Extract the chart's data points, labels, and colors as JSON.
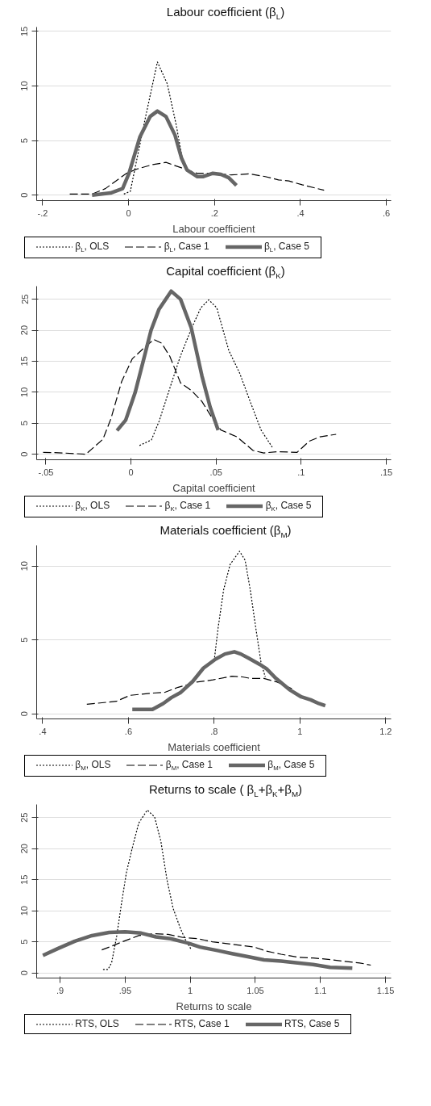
{
  "chart_data": [
    {
      "type": "line",
      "title": "Labour coefficient (β$_{L}$)",
      "xlabel": "Labour coefficient",
      "xlim": [
        -0.214,
        0.611
      ],
      "ylim": [
        -0.5,
        15.4
      ],
      "xticks": [
        {
          "value": -0.2,
          "label": "-.2"
        },
        0,
        {
          "value": 0.2,
          "label": ".2"
        },
        {
          "value": 0.4,
          "label": ".4"
        },
        {
          "value": 0.6,
          "label": ".6"
        }
      ],
      "yticks": [
        0,
        5,
        10,
        15
      ],
      "grid": "y",
      "legend": "bottom",
      "series": [
        {
          "name": "β$_{L}$, OLS",
          "color": "#000000",
          "line_style": "dotted",
          "x": [
            -0.011,
            0.004,
            0.038,
            0.067,
            0.09,
            0.111,
            0.126,
            0.135
          ],
          "values": [
            0.1,
            0.35,
            6.9,
            12.2,
            10.2,
            6.4,
            3.1,
            2.3
          ]
        },
        {
          "name": "β$_{L}$, Case 1",
          "color": "#000000",
          "line_style": "dashed",
          "x": [
            -0.137,
            -0.085,
            -0.054,
            -0.005,
            0.02,
            0.056,
            0.087,
            0.123,
            0.16,
            0.196,
            0.239,
            0.282,
            0.318,
            0.349,
            0.373,
            0.404,
            0.455
          ],
          "values": [
            0.1,
            0.1,
            0.6,
            2.0,
            2.4,
            2.8,
            3.0,
            2.5,
            2.0,
            2.0,
            1.85,
            1.95,
            1.7,
            1.4,
            1.3,
            0.95,
            0.45
          ]
        },
        {
          "name": "β$_{L}$, Case 5",
          "color": "#666666",
          "line_style": "solid",
          "x": [
            -0.085,
            -0.042,
            -0.014,
            0.001,
            0.026,
            0.05,
            0.067,
            0.087,
            0.108,
            0.123,
            0.136,
            0.16,
            0.173,
            0.196,
            0.215,
            0.233,
            0.251
          ],
          "values": [
            0,
            0.2,
            0.6,
            2.0,
            5.3,
            7.2,
            7.7,
            7.2,
            5.5,
            3.4,
            2.3,
            1.7,
            1.7,
            2.0,
            1.9,
            1.6,
            0.9
          ]
        }
      ]
    },
    {
      "type": "line",
      "title": "Capital coefficient (β$_{K}$)",
      "xlabel": "Capital coefficient",
      "xlim": [
        -0.0554,
        0.1528
      ],
      "ylim": [
        -0.9,
        27.1
      ],
      "xticks": [
        {
          "value": -0.05,
          "label": "-.05"
        },
        0,
        {
          "value": 0.05,
          "label": ".05"
        },
        {
          "value": 0.1,
          "label": ".1"
        },
        {
          "value": 0.15,
          "label": ".15"
        }
      ],
      "yticks": [
        0,
        5,
        10,
        15,
        20,
        25
      ],
      "grid": "y",
      "legend": "bottom",
      "series": [
        {
          "name": "β$_{K}$, OLS",
          "color": "#000000",
          "line_style": "dotted",
          "x": [
            0.005,
            0.012,
            0.0165,
            0.023,
            0.029,
            0.0354,
            0.041,
            0.0457,
            0.0504,
            0.0575,
            0.0638,
            0.07,
            0.0764,
            0.0835
          ],
          "values": [
            1.4,
            2.3,
            5.3,
            10.8,
            15.8,
            20.2,
            23.6,
            24.9,
            23.6,
            16.7,
            13.1,
            8.5,
            3.9,
            0.9
          ]
        },
        {
          "name": "β$_{K}$, Case 1",
          "color": "#000000",
          "line_style": "dashed",
          "x": [
            -0.0516,
            -0.04,
            -0.0265,
            -0.0165,
            -0.0118,
            -0.0055,
            0.0008,
            0.0071,
            0.0134,
            0.018,
            0.0228,
            0.0291,
            0.0354,
            0.0417,
            0.048,
            0.0528,
            0.0622,
            0.0717,
            0.078,
            0.0858,
            0.0976,
            0.1047,
            0.111,
            0.1205
          ],
          "values": [
            0.3,
            0.2,
            0,
            2.4,
            5.7,
            11.7,
            15.4,
            17.0,
            18.5,
            17.9,
            15.8,
            11.5,
            10.3,
            8.5,
            5.7,
            3.9,
            2.8,
            0.6,
            0.2,
            0.4,
            0.3,
            2.1,
            2.8,
            3.2
          ]
        },
        {
          "name": "β$_{K}$, Case 5",
          "color": "#666666",
          "line_style": "solid",
          "x": [
            -0.0082,
            -0.0031,
            0.0024,
            0.0071,
            0.0118,
            0.0165,
            0.0236,
            0.0291,
            0.0354,
            0.0417,
            0.0465,
            0.0512
          ],
          "values": [
            3.8,
            5.5,
            9.9,
            14.9,
            20.0,
            23.4,
            26.3,
            25.0,
            20.4,
            12.6,
            7.6,
            3.9
          ]
        }
      ]
    },
    {
      "type": "line",
      "title": "Materials coefficient (β$_{M}$)",
      "xlabel": "Materials coefficient",
      "xlim": [
        0.386,
        1.2125
      ],
      "ylim": [
        -0.34,
        11.4
      ],
      "xticks": [
        {
          "value": 0.4,
          "label": ".4"
        },
        {
          "value": 0.6,
          "label": ".6"
        },
        {
          "value": 0.8,
          "label": ".8"
        },
        1,
        1.2
      ],
      "yticks": [
        0,
        5,
        10
      ],
      "grid": "y",
      "legend": "bottom",
      "series": [
        {
          "name": "β$_{M}$, OLS",
          "color": "#000000",
          "line_style": "dotted",
          "x": [
            0.8,
            0.809,
            0.822,
            0.837,
            0.859,
            0.872,
            0.884,
            0.897,
            0.909,
            0.919
          ],
          "values": [
            3.6,
            5.8,
            8.4,
            10.1,
            11.0,
            10.4,
            8.4,
            5.8,
            3.5,
            2.5
          ]
        },
        {
          "name": "β$_{M}$, Case 1",
          "color": "#000000",
          "line_style": "dashed",
          "x": [
            0.503,
            0.572,
            0.603,
            0.653,
            0.684,
            0.716,
            0.759,
            0.797,
            0.841,
            0.866,
            0.884,
            0.916,
            0.947,
            0.981
          ],
          "values": [
            0.65,
            0.85,
            1.25,
            1.4,
            1.45,
            1.8,
            2.15,
            2.3,
            2.55,
            2.5,
            2.4,
            2.4,
            2.15,
            1.7
          ]
        },
        {
          "name": "β$_{M}$, Case 5",
          "color": "#666666",
          "line_style": "solid",
          "x": [
            0.609,
            0.656,
            0.681,
            0.7,
            0.722,
            0.75,
            0.775,
            0.803,
            0.825,
            0.847,
            0.862,
            0.881,
            0.906,
            0.922,
            0.944,
            0.975,
            1.003,
            1.025,
            1.044,
            1.059
          ],
          "values": [
            0.3,
            0.3,
            0.7,
            1.1,
            1.45,
            2.2,
            3.1,
            3.7,
            4.05,
            4.2,
            4.05,
            3.75,
            3.35,
            3.05,
            2.4,
            1.65,
            1.15,
            0.95,
            0.7,
            0.55
          ]
        }
      ]
    },
    {
      "type": "line",
      "title": "Returns to scale ( β$_{L}$+β$_{K}$+β$_{M}$)",
      "xlabel": "Returns to scale",
      "xlim": [
        0.882,
        1.1543
      ],
      "ylim": [
        -0.83,
        27.1
      ],
      "xticks": [
        {
          "value": 0.9,
          "label": ".9"
        },
        {
          "value": 0.95,
          "label": ".95"
        },
        1,
        1.05,
        1.1,
        1.15
      ],
      "yticks": [
        0,
        5,
        10,
        15,
        20,
        25
      ],
      "grid": "y",
      "legend": "bottom",
      "series": [
        {
          "name": "RTS, OLS",
          "color": "#000000",
          "line_style": "dotted",
          "x": [
            0.933,
            0.9368,
            0.9396,
            0.9434,
            0.9472,
            0.951,
            0.9557,
            0.9604,
            0.967,
            0.9726,
            0.9774,
            0.9821,
            0.9868,
            0.9925,
            0.9962,
            1.0009
          ],
          "values": [
            0.55,
            0.55,
            1.65,
            5.8,
            11.2,
            16.2,
            20.3,
            24.1,
            26.2,
            25.1,
            21.2,
            15.0,
            10.4,
            7.1,
            5.4,
            3.7
          ]
        },
        {
          "name": "RTS, Case 1",
          "color": "#000000",
          "line_style": "dashed",
          "x": [
            0.932,
            0.9396,
            0.949,
            0.9604,
            0.9717,
            0.983,
            0.9943,
            1.0057,
            1.017,
            1.0283,
            1.0396,
            1.0491,
            1.0585,
            1.0698,
            1.083,
            1.0943,
            1.1075,
            1.1189,
            1.1302,
            1.1387
          ],
          "values": [
            3.7,
            4.3,
            5.1,
            6.0,
            6.3,
            6.2,
            5.7,
            5.5,
            5.0,
            4.7,
            4.4,
            4.15,
            3.5,
            3.0,
            2.5,
            2.4,
            2.15,
            1.85,
            1.6,
            1.25
          ]
        },
        {
          "name": "RTS, Case 5",
          "color": "#666666",
          "line_style": "solid",
          "x": [
            0.8868,
            0.8981,
            0.9113,
            0.9245,
            0.9377,
            0.95,
            0.9623,
            0.9736,
            0.9849,
            0.9981,
            1.0075,
            1.0208,
            1.0321,
            1.0434,
            1.0566,
            1.0698,
            1.0811,
            1.0943,
            1.1075,
            1.1245
          ],
          "values": [
            2.8,
            3.9,
            5.1,
            6.0,
            6.5,
            6.6,
            6.4,
            5.8,
            5.5,
            4.8,
            4.15,
            3.6,
            3.1,
            2.65,
            2.1,
            1.9,
            1.65,
            1.35,
            0.9,
            0.75
          ]
        }
      ]
    }
  ]
}
